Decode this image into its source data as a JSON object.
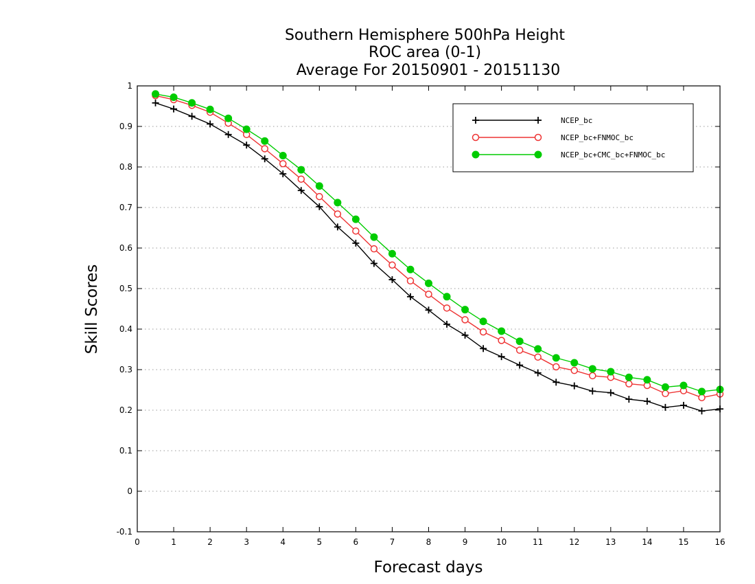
{
  "chart_data": {
    "type": "line",
    "title_lines": [
      "Southern Hemisphere 500hPa Height",
      "ROC area (0-1)",
      "Average For 20150901 - 20151130"
    ],
    "xlabel": "Forecast days",
    "ylabel": "Skill Scores",
    "xlim": [
      0,
      16
    ],
    "ylim": [
      -0.1,
      1
    ],
    "xticks": [
      "0",
      "1",
      "2",
      "3",
      "4",
      "5",
      "6",
      "7",
      "8",
      "9",
      "10",
      "11",
      "12",
      "13",
      "14",
      "15",
      "16"
    ],
    "yticks": [
      "-0.1",
      "0",
      "0.1",
      "0.2",
      "0.3",
      "0.4",
      "0.5",
      "0.6",
      "0.7",
      "0.8",
      "0.9",
      "1"
    ],
    "grid": "horizontal dotted",
    "legend_position": "top-right",
    "x": [
      0.5,
      1,
      1.5,
      2,
      2.5,
      3,
      3.5,
      4,
      4.5,
      5,
      5.5,
      6,
      6.5,
      7,
      7.5,
      8,
      8.5,
      9,
      9.5,
      10,
      10.5,
      11,
      11.5,
      12,
      12.5,
      13,
      13.5,
      14,
      14.5,
      15,
      15.5,
      16
    ],
    "series": [
      {
        "name": "NCEP_bc",
        "color": "#000000",
        "marker": "plus",
        "values": [
          0.958,
          0.943,
          0.925,
          0.906,
          0.88,
          0.854,
          0.82,
          0.783,
          0.742,
          0.702,
          0.652,
          0.612,
          0.562,
          0.522,
          0.48,
          0.447,
          0.412,
          0.385,
          0.352,
          0.332,
          0.311,
          0.292,
          0.269,
          0.26,
          0.247,
          0.243,
          0.227,
          0.222,
          0.207,
          0.212,
          0.198,
          0.203
        ]
      },
      {
        "name": "NCEP_bc+FNMOC_bc",
        "color": "#ee3333",
        "marker": "open-circle",
        "values": [
          0.976,
          0.966,
          0.952,
          0.935,
          0.908,
          0.88,
          0.845,
          0.808,
          0.77,
          0.727,
          0.684,
          0.642,
          0.598,
          0.558,
          0.519,
          0.486,
          0.452,
          0.423,
          0.393,
          0.372,
          0.348,
          0.331,
          0.307,
          0.298,
          0.285,
          0.281,
          0.265,
          0.261,
          0.241,
          0.248,
          0.231,
          0.24
        ]
      },
      {
        "name": "NCEP_bc+CMC_bc+FNMOC_bc",
        "color": "#00cc00",
        "marker": "filled-circle",
        "values": [
          0.98,
          0.972,
          0.958,
          0.942,
          0.92,
          0.893,
          0.864,
          0.828,
          0.793,
          0.753,
          0.712,
          0.671,
          0.627,
          0.586,
          0.547,
          0.513,
          0.48,
          0.448,
          0.419,
          0.395,
          0.37,
          0.351,
          0.329,
          0.317,
          0.302,
          0.295,
          0.281,
          0.275,
          0.257,
          0.261,
          0.246,
          0.251
        ]
      }
    ]
  }
}
